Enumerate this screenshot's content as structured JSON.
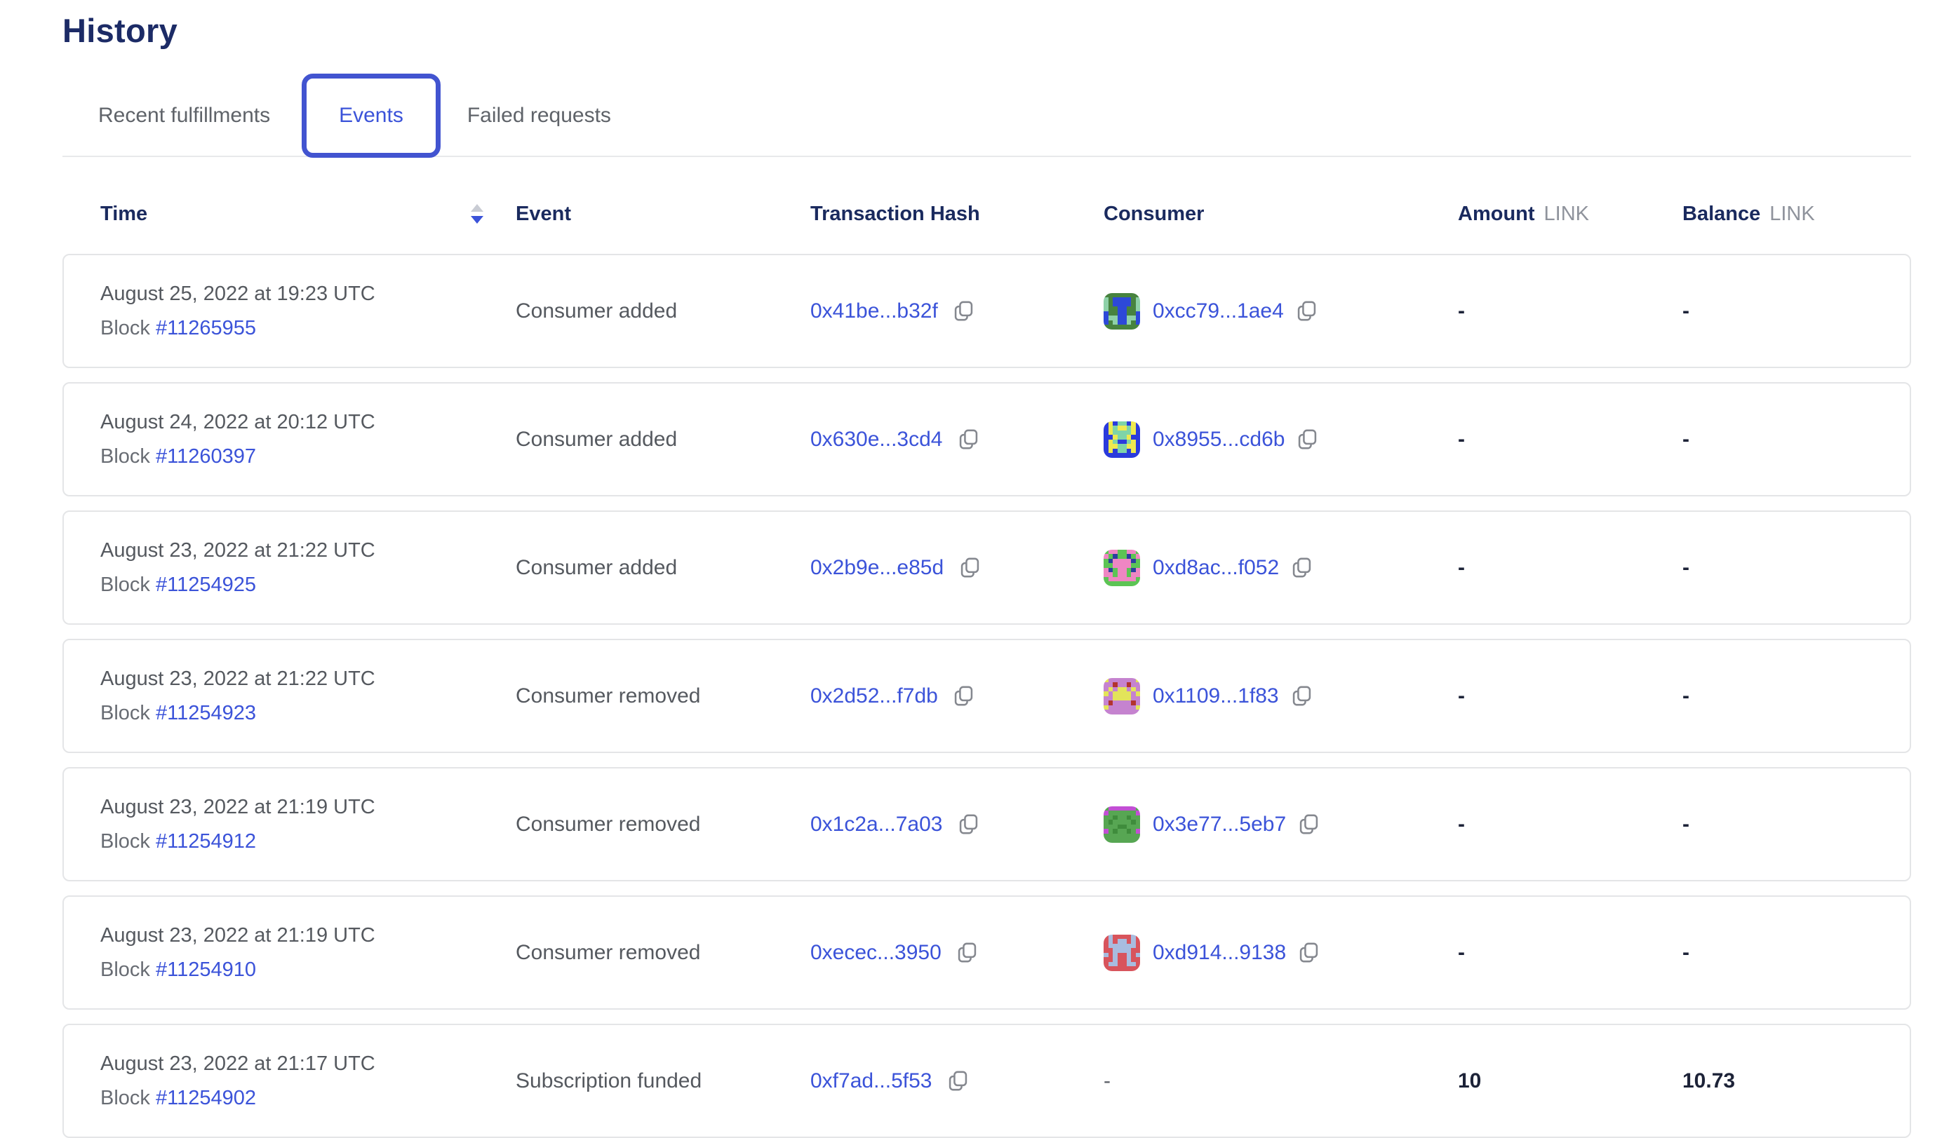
{
  "page": {
    "title": "History"
  },
  "tabs": [
    {
      "label": "Recent fulfillments",
      "active": false
    },
    {
      "label": "Events",
      "active": true
    },
    {
      "label": "Failed requests",
      "active": false
    }
  ],
  "table": {
    "columns": {
      "time": "Time",
      "event": "Event",
      "tx_hash": "Transaction Hash",
      "consumer": "Consumer",
      "amount": "Amount",
      "balance": "Balance",
      "link_unit": "LINK"
    },
    "sort": {
      "column": "Time",
      "direction": "desc"
    },
    "rows": [
      {
        "time": "August 25, 2022 at 19:23 UTC",
        "block_label": "Block",
        "block": "#11265955",
        "event": "Consumer added",
        "tx_hash": "0x41be...b32f",
        "identicon": "icon1",
        "consumer": "0xcc79...1ae4",
        "amount": "-",
        "balance": "-"
      },
      {
        "time": "August 24, 2022 at 20:12 UTC",
        "block_label": "Block",
        "block": "#11260397",
        "event": "Consumer added",
        "tx_hash": "0x630e...3cd4",
        "identicon": "icon2",
        "consumer": "0x8955...cd6b",
        "amount": "-",
        "balance": "-"
      },
      {
        "time": "August 23, 2022 at 21:22 UTC",
        "block_label": "Block",
        "block": "#11254925",
        "event": "Consumer added",
        "tx_hash": "0x2b9e...e85d",
        "identicon": "icon3",
        "consumer": "0xd8ac...f052",
        "amount": "-",
        "balance": "-"
      },
      {
        "time": "August 23, 2022 at 21:22 UTC",
        "block_label": "Block",
        "block": "#11254923",
        "event": "Consumer removed",
        "tx_hash": "0x2d52...f7db",
        "identicon": "icon4",
        "consumer": "0x1109...1f83",
        "amount": "-",
        "balance": "-"
      },
      {
        "time": "August 23, 2022 at 21:19 UTC",
        "block_label": "Block",
        "block": "#11254912",
        "event": "Consumer removed",
        "tx_hash": "0x1c2a...7a03",
        "identicon": "icon5",
        "consumer": "0x3e77...5eb7",
        "amount": "-",
        "balance": "-"
      },
      {
        "time": "August 23, 2022 at 21:19 UTC",
        "block_label": "Block",
        "block": "#11254910",
        "event": "Consumer removed",
        "tx_hash": "0xecec...3950",
        "identicon": "icon6",
        "consumer": "0xd914...9138",
        "amount": "-",
        "balance": "-"
      },
      {
        "time": "August 23, 2022 at 21:17 UTC",
        "block_label": "Block",
        "block": "#11254902",
        "event": "Subscription funded",
        "tx_hash": "0xf7ad...5f53",
        "identicon": null,
        "consumer": "-",
        "amount": "10",
        "balance": "10.73"
      }
    ]
  },
  "identicons": {
    "icon1": {
      "palette": {
        "g": "#47833f",
        "b": "#2d49d8",
        "a": "#8ed1a8"
      },
      "rows": [
        "gggggggg",
        "agbbbbga",
        "agbbbbga",
        "aggbbgga",
        "bggbbggb",
        "baabbaab",
        "bgabbagb",
        "gggggggg"
      ]
    },
    "icon2": {
      "palette": {
        "b": "#2b3bdc",
        "y": "#efe94f",
        "t": "#7fd4a8"
      },
      "rows": [
        "bybttbyb",
        "bytyytyb",
        "byttttyb",
        "bbyttybb",
        "bytbbtyb",
        "byyttyyb",
        "bybttbyb",
        "bbbbbbbb"
      ]
    },
    "icon3": {
      "palette": {
        "g": "#5cc454",
        "p": "#ef86c3",
        "n": "#2b3f9e"
      },
      "rows": [
        "gppggppg",
        "pgnggngp",
        "gnppppng",
        "ggppppgg",
        "pngppgnp",
        "ppgppgpp",
        "gppppppg",
        "gggggggg"
      ]
    },
    "icon4": {
      "palette": {
        "p": "#c583cf",
        "y": "#e3e45a",
        "r": "#b3342e"
      },
      "rows": [
        "yppppppy",
        "pprpprpp",
        "pypyypyp",
        "ypyyyypy",
        "ppyyyypp",
        "prpppprp",
        "yppppppy",
        "pppppppp"
      ]
    },
    "icon5": {
      "palette": {
        "g": "#57a653",
        "m": "#c24fd4",
        "d": "#3f8c3c"
      },
      "rows": [
        "gmmmmmmg",
        "mggggggm",
        "ggdggdgg",
        "gdggggdg",
        "gggddggg",
        "mgdggdgm",
        "gggggggg",
        "gggggggg"
      ]
    },
    "icon6": {
      "palette": {
        "r": "#d8545c",
        "l": "#a8bcdf"
      },
      "rows": [
        "rlrrrrlr",
        "rlrllrlr",
        "rllllllr",
        "rrllllrr",
        "lrlrrlrl",
        "rrlrrlrr",
        "rllrrllr",
        "rrrrrrrr"
      ]
    }
  },
  "colors": {
    "accent_blue": "#3b53d9",
    "tab_border_blue": "#4254d0",
    "heading_navy": "#1c2b66",
    "body_gray": "#55595f",
    "unit_gray": "#8f939c",
    "card_border": "#e4e5e7",
    "value_dark": "#1d2338"
  }
}
